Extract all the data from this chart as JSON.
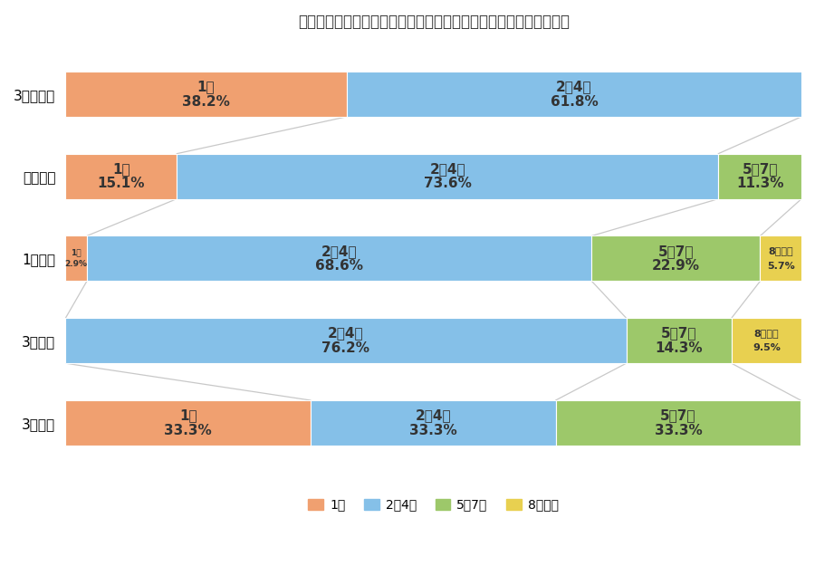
{
  "title": "マイホーム購入の検討期間とハウスメーカー、不動産会社の比較数",
  "categories": [
    "3ヶ月以内",
    "半年以内",
    "1年以内",
    "3年以内",
    "3年以上"
  ],
  "segments": [
    {
      "label": "1社",
      "color": "#F0A070"
    },
    {
      "label": "2～4社",
      "color": "#85C0E8"
    },
    {
      "label": "5～7社",
      "color": "#9DC86A"
    },
    {
      "label": "8社以上",
      "color": "#E8D050"
    }
  ],
  "data": [
    [
      38.2,
      61.8,
      0.0,
      0.0
    ],
    [
      15.1,
      73.6,
      11.3,
      0.0
    ],
    [
      2.9,
      68.6,
      22.9,
      5.7
    ],
    [
      0.0,
      76.2,
      14.3,
      9.5
    ],
    [
      33.3,
      33.3,
      33.3,
      0.0
    ]
  ],
  "background_color": "#FFFFFF",
  "connector_color": "#BBBBBB",
  "bar_height": 0.55
}
